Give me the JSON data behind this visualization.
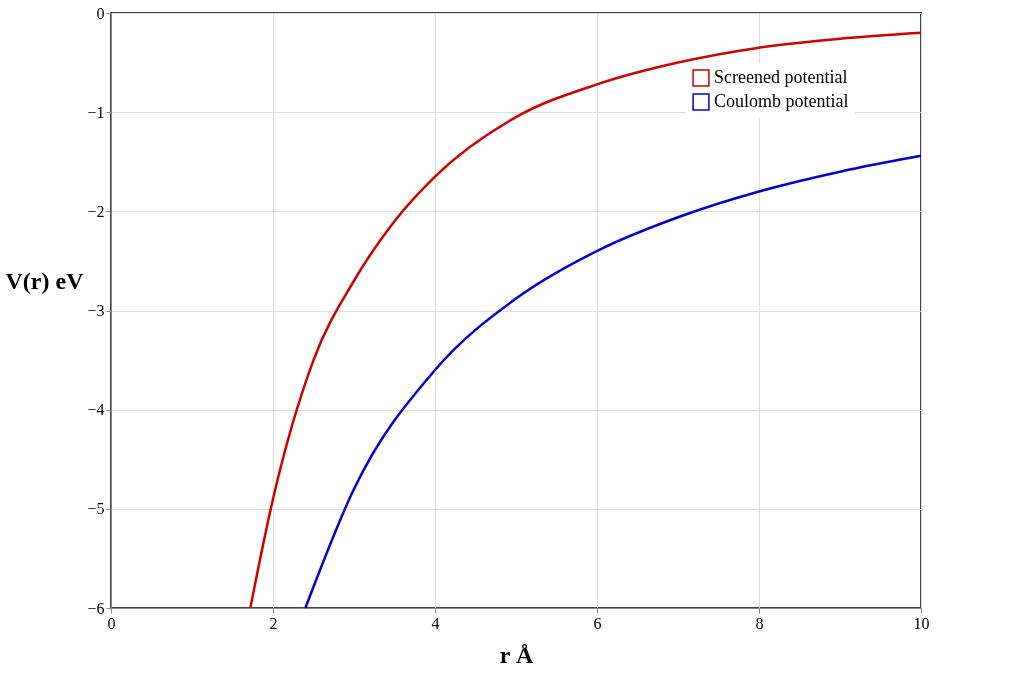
{
  "chart_data": {
    "type": "line",
    "xlabel": "r   Å",
    "ylabel": "V(r) eV",
    "xlim": [
      0,
      10
    ],
    "xticks": [
      0,
      2,
      4,
      6,
      8,
      10
    ],
    "ylim": [
      -6,
      0
    ],
    "yticks": [
      -6,
      -5,
      -4,
      -3,
      -2,
      -1,
      0
    ],
    "grid": true,
    "legend": "top right",
    "line_style": "solid",
    "marker": "none",
    "series": [
      {
        "name": "Screened potential",
        "color": "#cc0000",
        "x": [
          1.72,
          2,
          2.5,
          3,
          3.5,
          4,
          5,
          6,
          7,
          8,
          9,
          10
        ],
        "values": [
          -6,
          -4.9,
          -3.5,
          -2.7,
          -2.1,
          -1.65,
          -1.05,
          -0.72,
          -0.5,
          -0.35,
          -0.26,
          -0.2
        ]
      },
      {
        "name": "Coulomb potential",
        "color": "#0000cc",
        "x": [
          2.4,
          3,
          4,
          5,
          6,
          7,
          8,
          9,
          10
        ],
        "values": [
          -6,
          -4.8,
          -3.6,
          -2.88,
          -2.4,
          -2.06,
          -1.8,
          -1.6,
          -1.44
        ]
      }
    ]
  }
}
